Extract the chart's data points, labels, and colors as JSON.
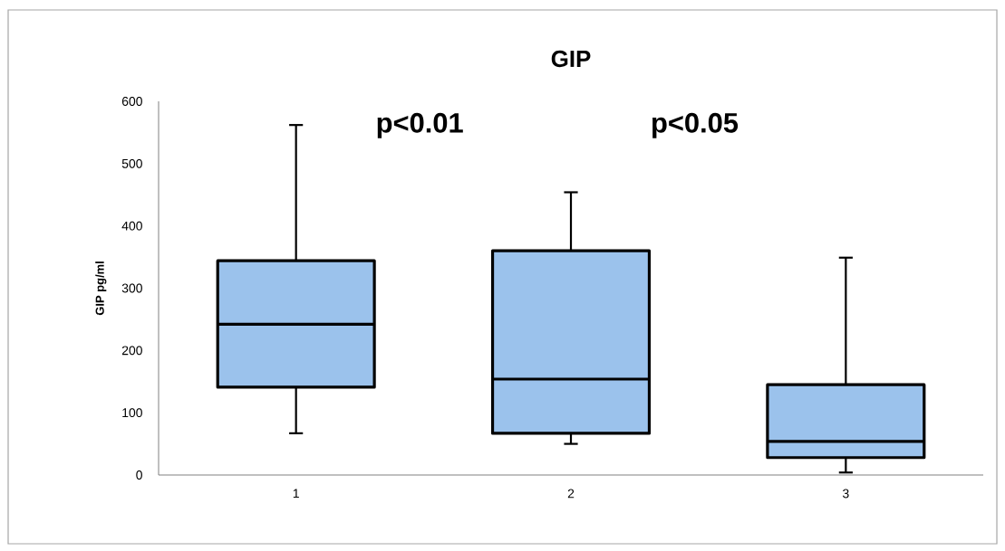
{
  "chart_data": {
    "type": "box",
    "title": "GIP",
    "ylabel": "GIP pg/ml",
    "categories": [
      "1",
      "2",
      "3"
    ],
    "boxes": [
      {
        "low": 67,
        "q1": 141,
        "median": 242,
        "q3": 344,
        "high": 562
      },
      {
        "low": 50,
        "q1": 67,
        "median": 154,
        "q3": 360,
        "high": 454
      },
      {
        "low": 4,
        "q1": 28,
        "median": 54,
        "q3": 145,
        "high": 349
      }
    ],
    "color": "#9bc2ec",
    "ylim": [
      0,
      600
    ],
    "yticks": [
      0,
      100,
      200,
      300,
      400,
      500,
      600
    ],
    "annotations": [
      "p<0.01",
      "p<0.05"
    ]
  }
}
